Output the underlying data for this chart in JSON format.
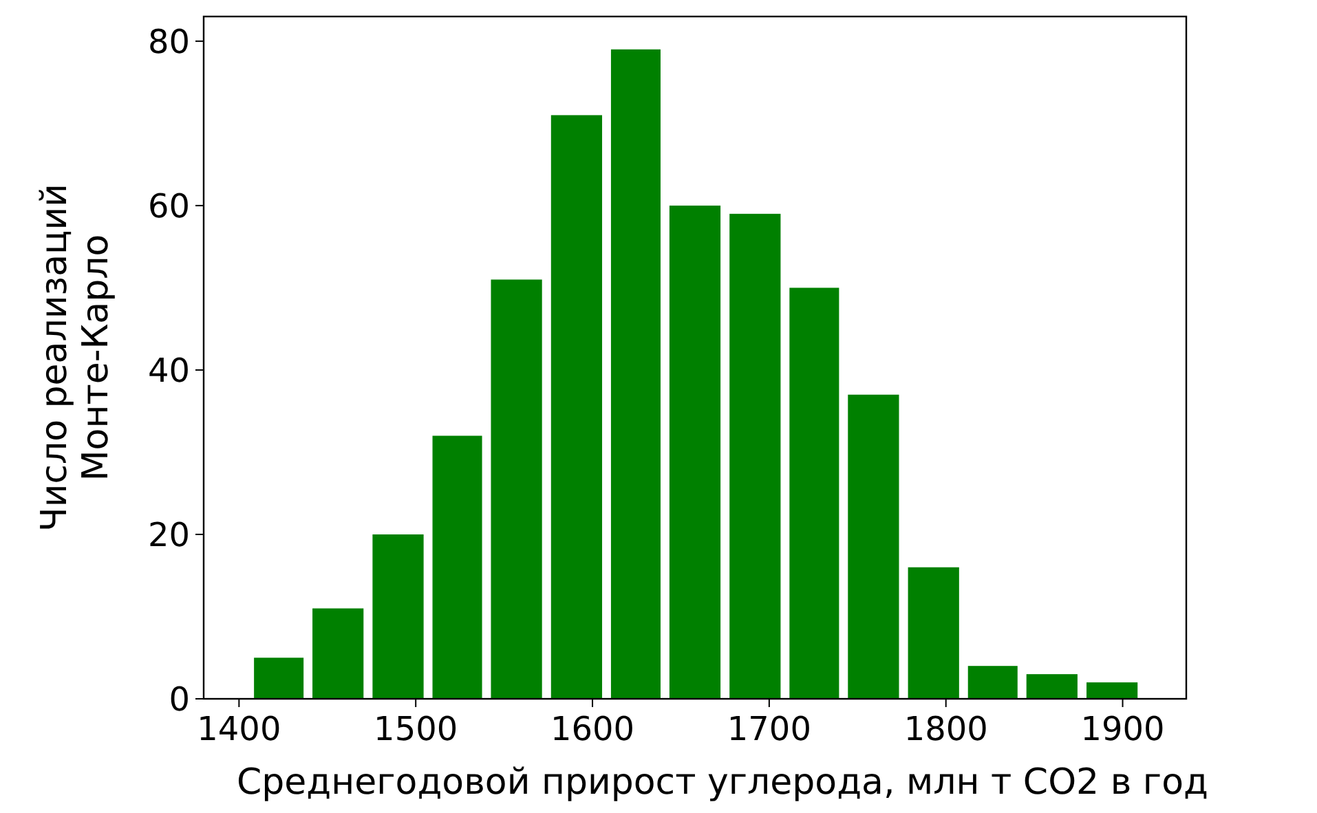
{
  "chart_data": {
    "type": "histogram",
    "xlabel": "Среднегодовой прирост углерода, млн т CO2 в год",
    "ylabel": "Число реализаций\nМонте-Карло",
    "bins": [
      1406,
      1439,
      1473,
      1507,
      1540,
      1574,
      1608,
      1641,
      1675,
      1709,
      1742,
      1776,
      1810,
      1843,
      1877,
      1911
    ],
    "values": [
      5,
      11,
      20,
      32,
      51,
      71,
      79,
      60,
      59,
      50,
      37,
      16,
      4,
      3,
      2
    ],
    "color": "#008000",
    "xlim": [
      1380,
      1936
    ],
    "xticks": [
      1400,
      1500,
      1600,
      1700,
      1800,
      1900
    ],
    "ylim": [
      0,
      83
    ],
    "yticks": [
      0,
      20,
      40,
      60,
      80
    ],
    "grid": false
  }
}
